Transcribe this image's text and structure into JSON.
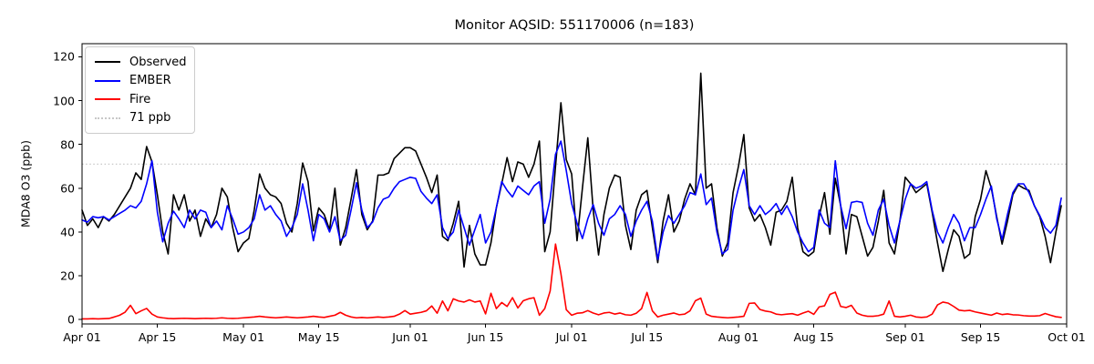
{
  "figure": {
    "title": "Monitor AQSID: 551170006 (n=183)"
  },
  "legend": {
    "items": [
      {
        "label": "Observed",
        "color": "#000000",
        "style": "solid"
      },
      {
        "label": "EMBER",
        "color": "#0000ff",
        "style": "solid"
      },
      {
        "label": "Fire",
        "color": "#ff0000",
        "style": "solid"
      },
      {
        "label": "71 ppb",
        "color": "#c8c8c8",
        "style": "dotted"
      }
    ]
  },
  "chart_data": {
    "type": "line",
    "title": "Monitor AQSID: 551170006 (n=183)",
    "xlabel": "",
    "ylabel": "MDA8 O3 (ppb)",
    "n_points": 183,
    "x_unit": "daily, Apr 01 through Sep 30",
    "xlim_days": [
      0,
      183
    ],
    "ylim": [
      -2,
      126
    ],
    "grid": false,
    "legend_position": "upper left",
    "x_tick_labels": [
      "Apr 01",
      "Apr 15",
      "May 01",
      "May 15",
      "Jun 01",
      "Jun 15",
      "Jul 01",
      "Jul 15",
      "Aug 01",
      "Aug 15",
      "Sep 01",
      "Sep 15",
      "Oct 01"
    ],
    "x_tick_days": [
      0,
      14,
      30,
      44,
      61,
      75,
      91,
      105,
      122,
      136,
      153,
      167,
      183
    ],
    "y_ticks": [
      0,
      20,
      40,
      60,
      80,
      100,
      120
    ],
    "reference_line": {
      "value": 71,
      "label": "71 ppb",
      "color": "#c8c8c8",
      "style": "dotted"
    },
    "series": [
      {
        "name": "Observed",
        "color": "#000000",
        "style": "solid",
        "values": [
          50,
          43,
          46,
          42,
          47,
          45,
          48,
          52,
          56,
          60,
          67,
          64,
          79,
          72,
          57,
          40,
          30,
          57,
          50,
          57,
          45,
          50,
          38,
          46,
          42,
          48,
          60,
          56,
          42,
          31,
          35,
          37,
          50,
          66.5,
          60,
          57,
          56,
          53,
          44,
          40,
          53,
          71.5,
          63,
          40.5,
          51,
          48,
          41,
          60,
          34,
          42,
          55,
          68.5,
          48,
          41,
          45,
          66,
          66,
          67,
          73.5,
          76,
          78.5,
          78.5,
          77,
          71,
          65,
          58,
          66,
          38,
          36,
          44,
          54,
          24,
          43,
          30,
          25,
          25,
          35,
          51,
          62,
          74,
          63,
          72,
          71,
          65,
          71,
          81.5,
          31,
          40,
          70,
          99,
          73,
          66.5,
          36,
          60,
          83,
          50,
          29.5,
          48,
          60,
          66,
          65,
          43,
          32,
          50,
          57,
          59,
          42,
          26,
          45,
          57,
          40,
          45,
          55,
          62,
          57,
          112.5,
          60,
          62,
          42,
          29,
          35,
          58,
          70,
          84.5,
          51,
          45,
          48,
          42,
          34,
          49,
          50,
          54,
          65,
          42,
          31,
          29,
          31,
          47,
          58,
          39,
          64.5,
          52,
          30,
          48,
          47,
          38,
          29,
          33,
          45,
          59,
          35,
          30,
          45,
          65,
          62,
          58,
          60,
          62,
          49,
          35,
          22,
          32,
          41,
          38,
          28,
          30,
          47,
          55,
          68,
          60,
          47,
          34.5,
          45,
          57,
          61.5,
          60,
          59,
          52,
          47,
          38,
          26,
          40,
          52
        ]
      },
      {
        "name": "EMBER",
        "color": "#0000ff",
        "style": "solid",
        "values": [
          45.5,
          44.5,
          47,
          46.5,
          47,
          45.5,
          47,
          48.5,
          50,
          52,
          51,
          54,
          62,
          72.5,
          49,
          35.5,
          44,
          49.5,
          46,
          42,
          50,
          46,
          50,
          49,
          42,
          45,
          41,
          52,
          46,
          39,
          40,
          42,
          46,
          57,
          50,
          52,
          48,
          45,
          38,
          42,
          48,
          62,
          50,
          36,
          48,
          46,
          40,
          47,
          36,
          38.5,
          50,
          62.5,
          50,
          42,
          44.5,
          51,
          55,
          56,
          60,
          63,
          64,
          65,
          64.5,
          58.5,
          55.5,
          53,
          57,
          42,
          37,
          40,
          50,
          42,
          34,
          41,
          48,
          35,
          40,
          51,
          63,
          59,
          56,
          61,
          59,
          57,
          61,
          63,
          44,
          55,
          75.5,
          81.5,
          68,
          53,
          44,
          37,
          46,
          52.5,
          44,
          38.5,
          46,
          48,
          52,
          48,
          38,
          45,
          50,
          54,
          45,
          27.5,
          40,
          47.5,
          44,
          48,
          52,
          58,
          57,
          66.5,
          52.5,
          55.5,
          40,
          30,
          32,
          50,
          60,
          68.5,
          52,
          48,
          52,
          48,
          50,
          53,
          48,
          52,
          47,
          40,
          35,
          31,
          33,
          50,
          44,
          42,
          72.5,
          52,
          41.5,
          53.5,
          54,
          53.5,
          44,
          38.5,
          50,
          55,
          43,
          35,
          45,
          55,
          62,
          60,
          61,
          63,
          50,
          40,
          35,
          42,
          48,
          44,
          36,
          42,
          42,
          48,
          55,
          61,
          46,
          36.5,
          48,
          58,
          62,
          62,
          58,
          52,
          47.5,
          42,
          39.5,
          43,
          55.5
        ]
      },
      {
        "name": "Fire",
        "color": "#ff0000",
        "style": "solid",
        "values": [
          0.3,
          0.3,
          0.4,
          0.3,
          0.4,
          0.5,
          1.2,
          2,
          3.4,
          6.5,
          2.7,
          4,
          5.1,
          2.5,
          1.2,
          0.8,
          0.5,
          0.4,
          0.5,
          0.6,
          0.5,
          0.4,
          0.5,
          0.6,
          0.5,
          0.6,
          0.8,
          0.6,
          0.5,
          0.6,
          0.8,
          1,
          1.2,
          1.5,
          1.2,
          1,
          0.8,
          1,
          1.2,
          1,
          0.8,
          1,
          1.2,
          1.5,
          1.2,
          1,
          1.5,
          2,
          3.3,
          2,
          1.2,
          0.8,
          1,
          0.8,
          1,
          1.2,
          1,
          1.2,
          1.5,
          2.5,
          4.1,
          2.5,
          2.9,
          3.3,
          4,
          6.2,
          2.9,
          8.5,
          4,
          9.5,
          8.5,
          8,
          9,
          8,
          8.5,
          2.6,
          12,
          5,
          7.8,
          6,
          10,
          5.3,
          8.6,
          9.5,
          10,
          2,
          5,
          13,
          34.5,
          21,
          4.5,
          2,
          2.9,
          3.1,
          4.1,
          3,
          2.2,
          3,
          3.3,
          2.5,
          3,
          2.2,
          2,
          2.9,
          5,
          12.4,
          4,
          1.2,
          2,
          2.5,
          3,
          2.2,
          2.5,
          4,
          8.6,
          9.8,
          2.5,
          1.5,
          1.2,
          1,
          0.8,
          1,
          1.2,
          1.5,
          7.4,
          7.6,
          4.6,
          3.9,
          3.5,
          2.5,
          2.2,
          2.5,
          2.7,
          2,
          3,
          3.8,
          2.4,
          5.8,
          6.3,
          11.5,
          12.5,
          6,
          5.5,
          6.5,
          3,
          2,
          1.5,
          1.5,
          1.8,
          2.5,
          8.5,
          1.5,
          1.2,
          1.5,
          2,
          1.2,
          1,
          1.2,
          2.5,
          6.7,
          8,
          7.5,
          6,
          4.3,
          4,
          4.2,
          3.5,
          3,
          2.5,
          2,
          3,
          2.3,
          2.6,
          2.2,
          2.1,
          1.8,
          1.6,
          1.6,
          1.8,
          2.8,
          2,
          1.3,
          1
        ]
      }
    ]
  }
}
